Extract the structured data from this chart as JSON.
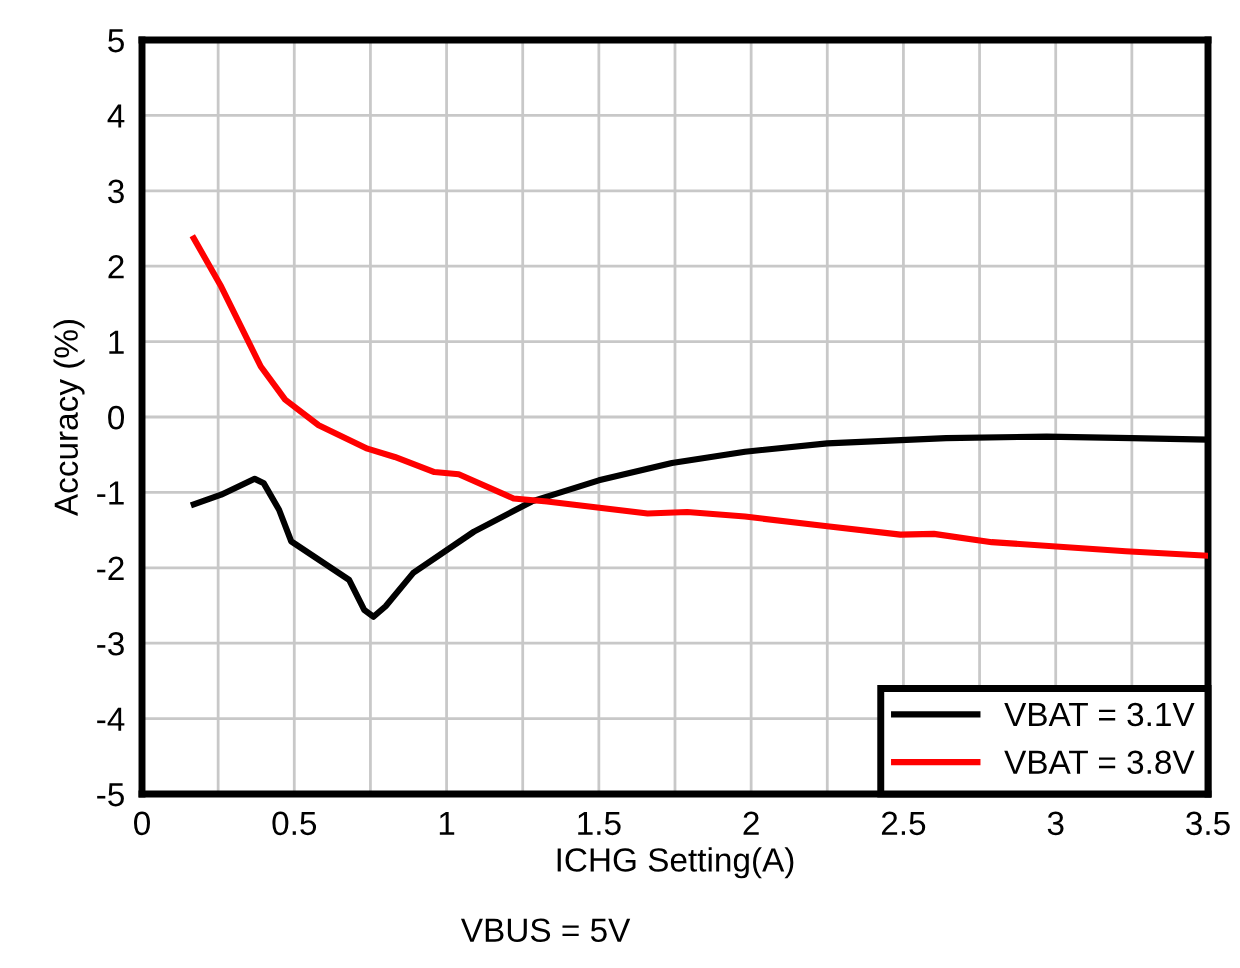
{
  "chart_data": {
    "type": "line",
    "xlabel": "ICHG Setting(A)",
    "ylabel": "Accuracy (%)",
    "annotations": [
      "VBUS = 5V"
    ],
    "xlim": [
      0,
      3.5
    ],
    "ylim": [
      -5,
      5
    ],
    "xticks": [
      0,
      {
        "value": 0.25,
        "label": null
      },
      0.5,
      {
        "value": 0.75,
        "label": null
      },
      1,
      {
        "value": 1.25,
        "label": null
      },
      1.5,
      {
        "value": 1.75,
        "label": null
      },
      2,
      {
        "value": 2.25,
        "label": null
      },
      2.5,
      {
        "value": 2.75,
        "label": null
      },
      3,
      {
        "value": 3.25,
        "label": null
      },
      3.5
    ],
    "yticks": [
      -5,
      -4,
      -3,
      -2,
      -1,
      0,
      1,
      2,
      3,
      4,
      5
    ],
    "grid": true,
    "legend": "bottom right",
    "line_style": "solid",
    "marker": "none",
    "series": [
      {
        "name": "VBAT = 3.1V",
        "color": "#000000",
        "x": [
          0.17,
          0.26,
          0.37,
          0.4,
          0.45,
          0.49,
          0.68,
          0.73,
          0.76,
          0.8,
          0.89,
          1.09,
          1.28,
          1.5,
          1.74,
          1.98,
          2.25,
          2.64,
          2.97,
          3.25,
          3.5
        ],
        "values": [
          -1.16,
          -1.03,
          -0.82,
          -0.88,
          -1.23,
          -1.65,
          -2.16,
          -2.56,
          -2.65,
          -2.51,
          -2.07,
          -1.52,
          -1.12,
          -0.84,
          -0.61,
          -0.46,
          -0.35,
          -0.28,
          -0.26,
          -0.28,
          -0.3
        ]
      },
      {
        "name": "VBAT = 3.8V",
        "color": "#ff0000",
        "x": [
          0.17,
          0.26,
          0.39,
          0.47,
          0.58,
          0.74,
          0.83,
          0.96,
          1.04,
          1.22,
          1.33,
          1.66,
          1.79,
          1.98,
          2.25,
          2.49,
          2.6,
          2.79,
          3.23,
          3.5
        ],
        "values": [
          2.37,
          1.73,
          0.67,
          0.23,
          -0.11,
          -0.42,
          -0.53,
          -0.73,
          -0.76,
          -1.08,
          -1.12,
          -1.28,
          -1.26,
          -1.32,
          -1.45,
          -1.56,
          -1.55,
          -1.66,
          -1.78,
          -1.84
        ]
      }
    ]
  }
}
